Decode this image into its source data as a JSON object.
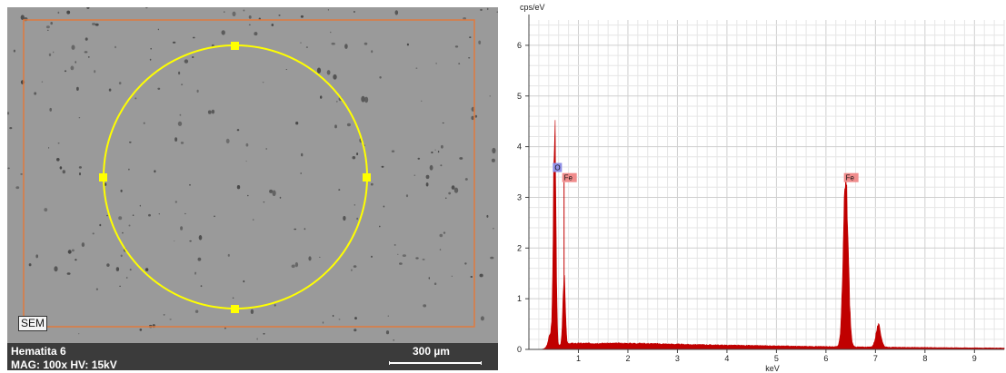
{
  "sem": {
    "tag": "SEM",
    "sample_name": "Hematita 6",
    "mag_hv": "MAG: 100x   HV: 15kV",
    "scale_label": "300 µm",
    "colors": {
      "roi_rect": "#e07a3e",
      "roi_circle": "#ffff00",
      "background": "#9a9a9a",
      "info_bar": "#3b3b3b"
    }
  },
  "chart_data": {
    "type": "area",
    "title": "",
    "xlabel": "keV",
    "ylabel": "cps/eV",
    "xlim": [
      0,
      9.6
    ],
    "ylim": [
      0,
      6.5
    ],
    "x_ticks": [
      "1",
      "2",
      "3",
      "4",
      "5",
      "6",
      "7",
      "8",
      "9"
    ],
    "y_ticks": [
      "0",
      "1",
      "2",
      "3",
      "4",
      "5",
      "6"
    ],
    "grid": true,
    "color": "#c00000",
    "peaks": [
      {
        "label": "O",
        "energy": 0.52,
        "height": 4.35,
        "label_color": "#8f8fe6"
      },
      {
        "label": "Fe",
        "energy": 0.71,
        "height": 1.35,
        "label_color": "#f08c8c"
      },
      {
        "label": "Fe",
        "energy": 6.4,
        "height": 3.25,
        "label_color": "#f08c8c"
      },
      {
        "label": "",
        "energy": 7.06,
        "height": 0.42,
        "label_color": ""
      }
    ],
    "background_level": 0.12,
    "labels": [
      {
        "text": "O",
        "energy": 0.52,
        "at": 3.5,
        "color": "#8f8fe6"
      },
      {
        "text": "Fe",
        "energy": 0.71,
        "at": 3.3,
        "color": "#f08c8c"
      },
      {
        "text": "Fe",
        "energy": 6.4,
        "at": 3.3,
        "color": "#f08c8c"
      }
    ]
  }
}
